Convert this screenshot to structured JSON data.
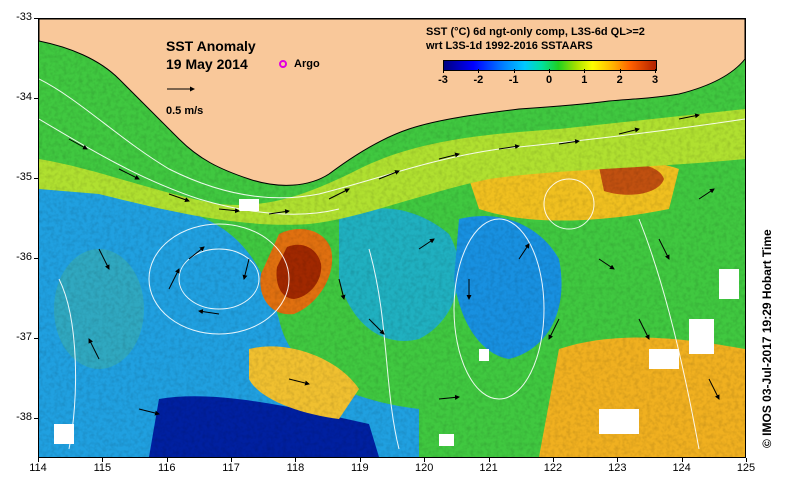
{
  "map": {
    "title": "SST Anomaly",
    "date": "19 May 2014",
    "argo_label": "Argo",
    "scale_label": "0.5 m/s",
    "legend_title_line1": "SST (°C) 6d ngt-only comp, L3S-6d QL>=2",
    "legend_title_line2": "wrt L3S-1d 1992-2016 SSTAARS",
    "colorbar_ticks": [
      "-3",
      "-2",
      "-1",
      "0",
      "1",
      "2",
      "3"
    ],
    "colorbar_range": [
      -3,
      3
    ],
    "lon_ticks": [
      "114",
      "115",
      "116",
      "117",
      "118",
      "119",
      "120",
      "121",
      "122",
      "123",
      "124",
      "125"
    ],
    "lat_ticks": [
      "-33",
      "-34",
      "-35",
      "-36",
      "-37",
      "-38"
    ],
    "lon_range": [
      114,
      125
    ],
    "lat_range": [
      -38.5,
      -33
    ],
    "credit": "© IMOS 03-Jul-2017 19:29 Hobart Time",
    "colors": {
      "land": "#f9c89a",
      "anomaly_cold": "#0000c0",
      "anomaly_neutral": "#30d030",
      "anomaly_warm": "#b03000",
      "argo_marker": "#e000e0",
      "contour": "#ffffff"
    }
  }
}
